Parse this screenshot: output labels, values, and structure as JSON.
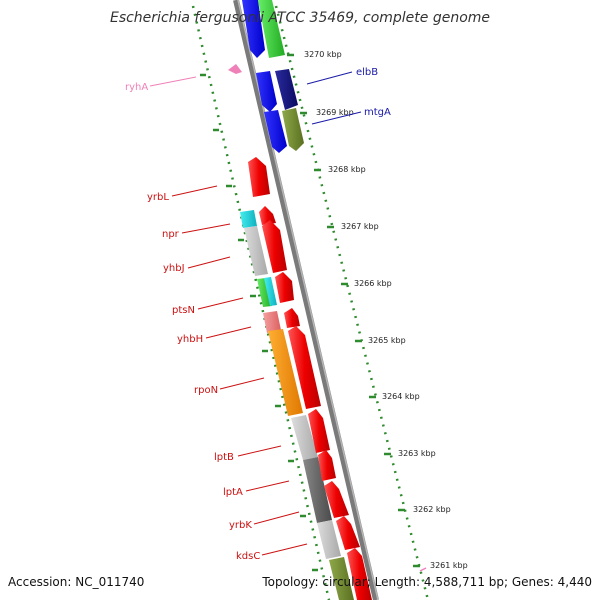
{
  "title": "Escherichia fergusonii ATCC 35469, complete genome",
  "footer": {
    "accession": "Accession: NC_011740",
    "topology": "Topology: circular; Length: 4,588,711 bp; Genes: 4,440"
  },
  "colors": {
    "backbone": "#888888",
    "dots": "#2e8b2e",
    "red": "#ee1111",
    "blue_label": "#1a1aa8",
    "red_label": "#cc1111",
    "pink_label": "#f080b8"
  },
  "ticks": [
    "3270 kbp",
    "3269 kbp",
    "3268 kbp",
    "3267 kbp",
    "3266 kbp",
    "3265 kbp",
    "3264 kbp",
    "3263 kbp",
    "3262 kbp",
    "3261 kbp"
  ],
  "gene_labels": {
    "ryhA": "ryhA",
    "elbB": "elbB",
    "mtgA": "mtgA",
    "yrbL": "yrbL",
    "npr": "npr",
    "yhbJ": "yhbJ",
    "ptsN": "ptsN",
    "yhbH": "yhbH",
    "rpoN": "rpoN",
    "lptB": "lptB",
    "lptA": "lptA",
    "yrbK": "yrbK",
    "kdsC": "kdsC"
  }
}
